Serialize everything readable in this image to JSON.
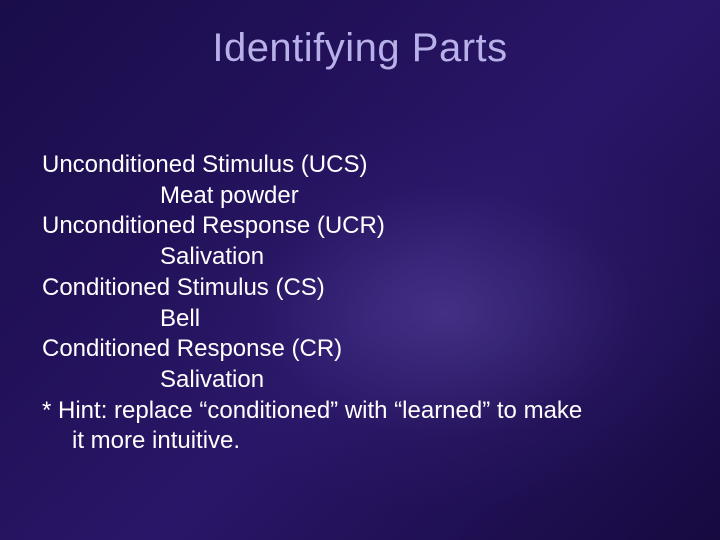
{
  "title": "Identifying Parts",
  "colors": {
    "title_color": "#b8b0e8",
    "text_color": "#ffffff",
    "bg_gradient_from": "#1a0d4a",
    "bg_gradient_to": "#160a40"
  },
  "typography": {
    "title_fontsize": 40,
    "body_fontsize": 24,
    "font_family": "Arial"
  },
  "content": {
    "ucs_label": "Unconditioned Stimulus (UCS)",
    "ucs_value": "Meat powder",
    "ucr_label": "Unconditioned Response (UCR)",
    "ucr_value": "Salivation",
    "cs_label": "Conditioned Stimulus (CS)",
    "cs_value": "Bell",
    "cr_label": "Conditioned Response (CR)",
    "cr_value": "Salivation",
    "hint_line1": "* Hint: replace “conditioned” with “learned” to make",
    "hint_line2": "it more intuitive."
  }
}
